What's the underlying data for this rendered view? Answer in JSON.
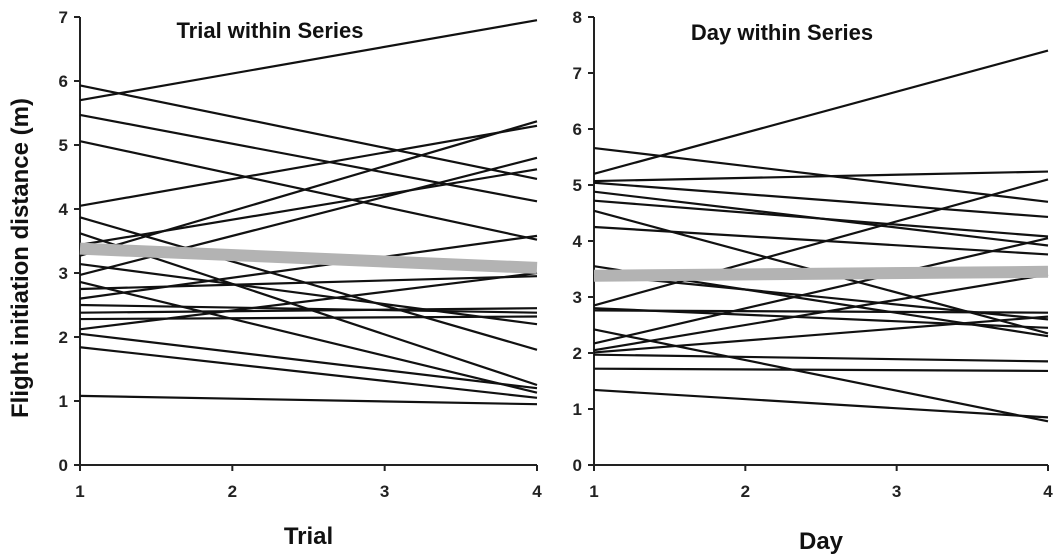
{
  "ylabel": "Flight initiation distance (m)",
  "colors": {
    "individual_line": "#111111",
    "mean_line": "#b3b3b3",
    "axis": "#222222"
  },
  "chart_data": [
    {
      "type": "line",
      "title": "Trial within Series",
      "xlabel": "Trial",
      "ylabel": "Flight initiation distance (m)",
      "x_ticks": [
        "1",
        "2",
        "3",
        "4"
      ],
      "xlim": [
        1,
        4
      ],
      "ylim": [
        0,
        7
      ],
      "y_ticks": [
        "0",
        "1",
        "2",
        "3",
        "4",
        "5",
        "6",
        "7"
      ],
      "grid": false,
      "legend": "none",
      "series": [
        {
          "x": [
            1,
            4
          ],
          "y": [
            5.7,
            6.95
          ]
        },
        {
          "x": [
            1,
            4
          ],
          "y": [
            5.93,
            4.47
          ]
        },
        {
          "x": [
            1,
            4
          ],
          "y": [
            5.47,
            4.12
          ]
        },
        {
          "x": [
            1,
            4
          ],
          "y": [
            5.06,
            3.52
          ]
        },
        {
          "x": [
            1,
            4
          ],
          "y": [
            4.05,
            5.3
          ]
        },
        {
          "x": [
            1,
            4
          ],
          "y": [
            3.87,
            1.8
          ]
        },
        {
          "x": [
            1,
            4
          ],
          "y": [
            3.62,
            1.25
          ]
        },
        {
          "x": [
            1,
            4
          ],
          "y": [
            3.44,
            4.62
          ]
        },
        {
          "x": [
            1,
            4
          ],
          "y": [
            3.27,
            5.37
          ]
        },
        {
          "x": [
            1,
            4
          ],
          "y": [
            3.14,
            2.2
          ]
        },
        {
          "x": [
            1,
            4
          ],
          "y": [
            2.97,
            4.8
          ]
        },
        {
          "x": [
            1,
            4
          ],
          "y": [
            2.86,
            1.13
          ]
        },
        {
          "x": [
            1,
            4
          ],
          "y": [
            2.75,
            2.95
          ]
        },
        {
          "x": [
            1,
            4
          ],
          "y": [
            2.6,
            3.58
          ]
        },
        {
          "x": [
            1,
            4
          ],
          "y": [
            2.5,
            2.38
          ]
        },
        {
          "x": [
            1,
            4
          ],
          "y": [
            2.38,
            2.45
          ]
        },
        {
          "x": [
            1,
            4
          ],
          "y": [
            2.28,
            2.32
          ]
        },
        {
          "x": [
            1,
            4
          ],
          "y": [
            2.12,
            3.0
          ]
        },
        {
          "x": [
            1,
            4
          ],
          "y": [
            2.05,
            1.2
          ]
        },
        {
          "x": [
            1,
            4
          ],
          "y": [
            1.84,
            1.05
          ]
        },
        {
          "x": [
            1,
            4
          ],
          "y": [
            1.08,
            0.95
          ]
        }
      ],
      "mean_line": {
        "x": [
          1,
          4
        ],
        "y": [
          3.38,
          3.08
        ]
      }
    },
    {
      "type": "line",
      "title": "Day within Series",
      "xlabel": "Day",
      "ylabel": "",
      "x_ticks": [
        "1",
        "2",
        "3",
        "4"
      ],
      "xlim": [
        1,
        4
      ],
      "ylim": [
        0,
        8
      ],
      "y_ticks": [
        "0",
        "1",
        "2",
        "3",
        "4",
        "5",
        "6",
        "7",
        "8"
      ],
      "grid": false,
      "legend": "none",
      "series": [
        {
          "x": [
            1,
            4
          ],
          "y": [
            5.2,
            7.4
          ]
        },
        {
          "x": [
            1,
            4
          ],
          "y": [
            5.66,
            4.7
          ]
        },
        {
          "x": [
            1,
            4
          ],
          "y": [
            5.07,
            5.24
          ]
        },
        {
          "x": [
            1,
            4
          ],
          "y": [
            5.04,
            4.43
          ]
        },
        {
          "x": [
            1,
            4
          ],
          "y": [
            4.88,
            3.92
          ]
        },
        {
          "x": [
            1,
            4
          ],
          "y": [
            4.72,
            4.08
          ]
        },
        {
          "x": [
            1,
            4
          ],
          "y": [
            4.54,
            2.35
          ]
        },
        {
          "x": [
            1,
            4
          ],
          "y": [
            4.25,
            3.76
          ]
        },
        {
          "x": [
            1,
            4
          ],
          "y": [
            3.55,
            2.3
          ]
        },
        {
          "x": [
            1,
            4
          ],
          "y": [
            3.4,
            2.6
          ]
        },
        {
          "x": [
            1,
            4
          ],
          "y": [
            2.85,
            5.1
          ]
        },
        {
          "x": [
            1,
            4
          ],
          "y": [
            2.8,
            2.45
          ]
        },
        {
          "x": [
            1,
            4
          ],
          "y": [
            2.76,
            2.72
          ]
        },
        {
          "x": [
            1,
            4
          ],
          "y": [
            2.42,
            0.78
          ]
        },
        {
          "x": [
            1,
            4
          ],
          "y": [
            2.17,
            4.05
          ]
        },
        {
          "x": [
            1,
            4
          ],
          "y": [
            2.05,
            3.4
          ]
        },
        {
          "x": [
            1,
            4
          ],
          "y": [
            2.01,
            2.65
          ]
        },
        {
          "x": [
            1,
            4
          ],
          "y": [
            1.97,
            1.85
          ]
        },
        {
          "x": [
            1,
            4
          ],
          "y": [
            1.72,
            1.68
          ]
        },
        {
          "x": [
            1,
            4
          ],
          "y": [
            1.34,
            0.85
          ]
        }
      ],
      "mean_line": {
        "x": [
          1,
          4
        ],
        "y": [
          3.38,
          3.45
        ]
      }
    }
  ]
}
